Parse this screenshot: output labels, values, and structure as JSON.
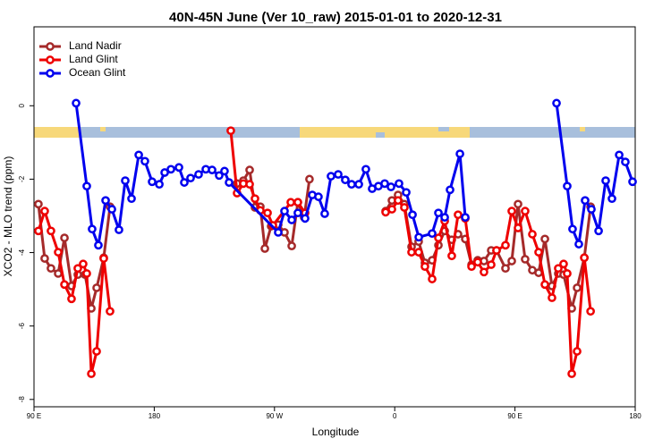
{
  "chart_data": {
    "type": "line",
    "title": "40N-45N June (Ver 10_raw)   2015-01-01 to 2020-12-31",
    "x_label": "Longitude",
    "y_label": "XCO2 - MLO trend (ppm)",
    "xlim": [
      90,
      540
    ],
    "ylim": [
      -8.2,
      2.15
    ],
    "xticks": [
      {
        "value": 90,
        "label": "90 E"
      },
      180,
      {
        "value": 270,
        "label": "90 W"
      },
      {
        "value": 360,
        "label": "0"
      },
      {
        "value": 450,
        "label": "90 E"
      },
      {
        "value": 540,
        "label": "180"
      }
    ],
    "yticks": [
      0,
      -2,
      -4,
      -6,
      -8
    ],
    "legend": "top-left",
    "series": [
      {
        "name": "Land Nadir",
        "color": "#a52a2a",
        "x": [
          93.3,
          98.0,
          102.7,
          108.1,
          112.8,
          118.1,
          122.8,
          128.2,
          132.9,
          136.9,
          142.2,
          146.9,
          null,
          242.0,
          246.7,
          251.4,
          255.4,
          259.4,
          262.8,
          267.5,
          272.8,
          277.5,
          282.9,
          287.5,
          292.2,
          296.2,
          null,
          353.2,
          357.9,
          362.5,
          367.2,
          372.6,
          377.9,
          382.6,
          388.0,
          392.7,
          397.4,
          402.7,
          407.4,
          412.8,
          417.5,
          422.1,
          426.8,
          432.2,
          436.2,
          442.9,
          447.6,
          452.3,
          457.6,
          463.0,
          467.7,
          472.4,
          477.7,
          482.4,
          486.4,
          492.5,
          496.5,
          501.9,
          506.6
        ],
        "values": [
          -2.68,
          -4.16,
          -4.43,
          -4.57,
          -3.6,
          -4.91,
          -4.6,
          -4.6,
          -5.52,
          -4.96,
          -4.14,
          -2.75,
          null,
          -2.12,
          -2.04,
          -1.75,
          -2.77,
          -2.75,
          -3.89,
          -3.28,
          -3.24,
          -3.45,
          -3.82,
          -2.63,
          -3.04,
          -2.0,
          null,
          -2.87,
          -2.58,
          -2.43,
          -2.68,
          -3.84,
          -3.7,
          -4.28,
          -4.21,
          -3.8,
          -3.41,
          -3.65,
          -3.5,
          -3.63,
          -4.33,
          -4.21,
          -4.23,
          -3.94,
          -3.94,
          -4.43,
          -4.23,
          -2.68,
          -4.18,
          -4.48,
          -4.55,
          -3.63,
          -4.91,
          -4.57,
          -4.6,
          -5.52,
          -4.96,
          -4.14,
          -2.75
        ]
      },
      {
        "name": "Land Glint",
        "color": "#ee0000",
        "x": [
          93.3,
          98.0,
          102.7,
          108.1,
          112.8,
          118.1,
          122.8,
          126.8,
          129.5,
          132.9,
          136.9,
          142.2,
          146.9,
          null,
          237.3,
          242.0,
          246.7,
          251.4,
          255.4,
          259.4,
          264.8,
          268.8,
          282.2,
          287.5,
          292.9,
          null,
          353.2,
          357.9,
          362.5,
          367.2,
          372.6,
          377.9,
          382.6,
          388.0,
          392.7,
          397.4,
          402.7,
          407.4,
          412.8,
          417.5,
          422.1,
          426.8,
          432.2,
          436.2,
          442.9,
          447.6,
          452.3,
          457.6,
          463.0,
          467.7,
          472.4,
          477.7,
          482.4,
          486.4,
          489.1,
          492.5,
          496.5,
          501.9,
          506.6
        ],
        "values": [
          -3.41,
          -2.87,
          -3.41,
          -3.99,
          -4.87,
          -5.26,
          -4.43,
          -4.31,
          -4.57,
          -7.3,
          -6.69,
          -4.16,
          -5.6,
          null,
          -0.68,
          -2.38,
          -2.12,
          -2.14,
          -2.53,
          -2.85,
          -2.92,
          -3.26,
          -2.63,
          -2.63,
          -2.92,
          null,
          -2.9,
          -2.82,
          -2.58,
          -2.77,
          -3.99,
          -3.99,
          -4.38,
          -4.72,
          -3.6,
          -3.14,
          -4.09,
          -2.97,
          -3.07,
          -4.38,
          -4.26,
          -4.53,
          -4.33,
          -3.94,
          -3.8,
          -2.87,
          -3.33,
          -2.87,
          -3.5,
          -3.99,
          -4.87,
          -5.23,
          -4.43,
          -4.31,
          -4.57,
          -7.3,
          -6.69,
          -4.14,
          -5.6
        ]
      },
      {
        "name": "Ocean Glint",
        "color": "#0000ee",
        "x": [
          121.5,
          129.5,
          133.5,
          138.2,
          143.6,
          148.3,
          153.6,
          158.3,
          163.0,
          168.4,
          173.0,
          178.4,
          183.8,
          187.8,
          192.5,
          198.5,
          202.5,
          207.2,
          213.2,
          218.6,
          223.3,
          228.6,
          232.6,
          236.0,
          272.8,
          277.5,
          282.9,
          287.5,
          292.9,
          298.3,
          302.9,
          307.6,
          312.3,
          317.7,
          323.0,
          327.7,
          333.1,
          338.4,
          343.1,
          347.8,
          352.5,
          357.2,
          363.2,
          368.6,
          373.3,
          378.0,
          388.0,
          392.7,
          397.4,
          401.4,
          408.8,
          412.8,
          null,
          481.1,
          489.1,
          493.1,
          497.8,
          502.5,
          507.2,
          512.6,
          517.9,
          522.6,
          528.0,
          532.6,
          538.0
        ],
        "values": [
          0.07,
          -2.19,
          -3.36,
          -3.8,
          -2.58,
          -2.82,
          -3.38,
          -2.04,
          -2.53,
          -1.34,
          -1.51,
          -2.07,
          -2.14,
          -1.82,
          -1.73,
          -1.68,
          -2.09,
          -1.97,
          -1.87,
          -1.73,
          -1.75,
          -1.9,
          -1.78,
          -2.09,
          -3.45,
          -2.87,
          -3.11,
          -2.92,
          -3.07,
          -2.43,
          -2.48,
          -2.94,
          -1.92,
          -1.87,
          -2.02,
          -2.14,
          -2.14,
          -1.73,
          -2.26,
          -2.19,
          -2.12,
          -2.21,
          -2.12,
          -2.36,
          -2.97,
          -3.58,
          -3.48,
          -2.92,
          -3.04,
          -2.29,
          -1.31,
          -3.04,
          null,
          0.07,
          -2.19,
          -3.36,
          -3.77,
          -2.58,
          -2.82,
          -3.41,
          -2.04,
          -2.53,
          -1.34,
          -1.53,
          -2.07
        ]
      }
    ]
  }
}
